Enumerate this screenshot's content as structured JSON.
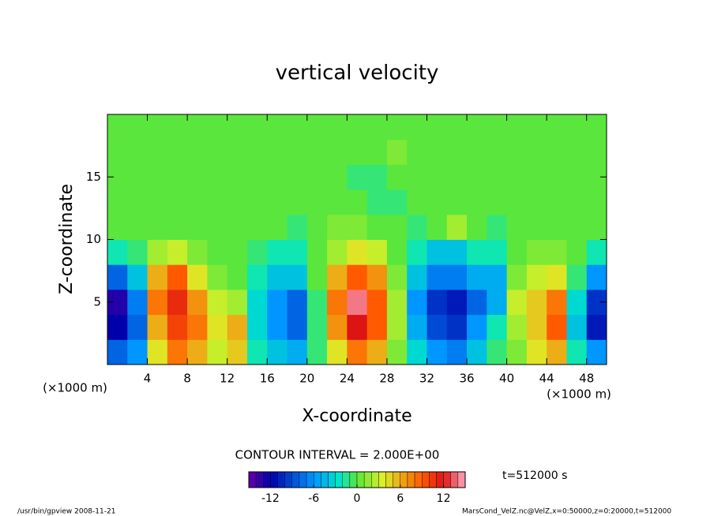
{
  "chart_data": {
    "type": "contour",
    "title": "vertical velocity",
    "xlabel": "X-coordinate",
    "ylabel": "Z-coordinate",
    "x_unit": "(×1000 m)",
    "y_unit": "(×1000 m)",
    "xlim": [
      0,
      50
    ],
    "ylim": [
      0,
      20
    ],
    "xticks": [
      4,
      8,
      12,
      16,
      20,
      24,
      28,
      32,
      36,
      40,
      44,
      48
    ],
    "yticks": [
      5,
      10,
      15
    ],
    "x": [
      1,
      3,
      5,
      7,
      9,
      11,
      13,
      15,
      17,
      19,
      21,
      23,
      25,
      27,
      29,
      31,
      33,
      35,
      37,
      39,
      41,
      43,
      45,
      47,
      49
    ],
    "y": [
      1,
      3,
      5,
      7,
      9,
      11,
      13,
      15,
      17,
      19
    ],
    "values": [
      [
        -8,
        -6,
        4,
        8,
        6,
        3,
        5,
        -2,
        -4,
        -5,
        -1,
        4,
        8,
        6,
        1,
        -3,
        -6,
        -7,
        -4,
        -1,
        1,
        4,
        6,
        -2,
        -6
      ],
      [
        -12,
        -8,
        6,
        10,
        8,
        4,
        6,
        -3,
        -6,
        -8,
        -1,
        7,
        12,
        9,
        2,
        -5,
        -9,
        -10,
        -6,
        -2,
        2,
        5,
        9,
        -4,
        -11
      ],
      [
        -13,
        -7,
        8,
        11,
        7,
        3,
        2,
        -3,
        -6,
        -8,
        -1,
        8,
        14,
        9,
        2,
        -6,
        -10,
        -11,
        -8,
        -5,
        3,
        5,
        8,
        -3,
        -10
      ],
      [
        -8,
        -4,
        6,
        9,
        4,
        1,
        0,
        -2,
        -4,
        -4,
        0,
        6,
        9,
        7,
        1,
        -4,
        -7,
        -7,
        -5,
        -5,
        1,
        3,
        4,
        -1,
        -6
      ],
      [
        -2,
        -1,
        2,
        3,
        1,
        0,
        0,
        -1,
        -2,
        -2,
        0,
        2,
        4,
        3,
        0,
        -2,
        -4,
        -4,
        -2,
        -2,
        0,
        1,
        1,
        0,
        -2
      ],
      [
        0,
        0,
        0,
        0,
        0,
        0,
        0,
        0,
        0,
        -1,
        0,
        1,
        1,
        0,
        0,
        -1,
        0,
        2,
        0,
        -1,
        0,
        0,
        0,
        0,
        0
      ],
      [
        0,
        0,
        0,
        0,
        0,
        0,
        0,
        0,
        0,
        0,
        0,
        0,
        0,
        -1,
        -1,
        0,
        0,
        0,
        0,
        0,
        0,
        0,
        0,
        0,
        0
      ],
      [
        0,
        0,
        0,
        0,
        0,
        0,
        0,
        0,
        0,
        0,
        0,
        0,
        -1,
        -1,
        0,
        0,
        0,
        0,
        0,
        0,
        0,
        0,
        0,
        0,
        0
      ],
      [
        0,
        0,
        0,
        0,
        0,
        0,
        0,
        0,
        0,
        0,
        0,
        0,
        0,
        0,
        1,
        0,
        0,
        0,
        0,
        0,
        0,
        0,
        0,
        0,
        0
      ],
      [
        0,
        0,
        0,
        0,
        0,
        0,
        0,
        0,
        0,
        0,
        0,
        0,
        0,
        0,
        0,
        0,
        0,
        0,
        0,
        0,
        0,
        0,
        0,
        0,
        0
      ]
    ],
    "contour_interval": "CONTOUR INTERVAL = 2.000E+00",
    "clim": [
      -15,
      15
    ],
    "colorbar_ticks": [
      -12,
      -6,
      0,
      6,
      12
    ],
    "time_label": "t=512000 s",
    "footer_left": "/usr/bin/gpview  2008-11-21",
    "footer_right": "MarsCond_VelZ.nc@VelZ,x=0:50000,z=0:20000,t=512000"
  }
}
